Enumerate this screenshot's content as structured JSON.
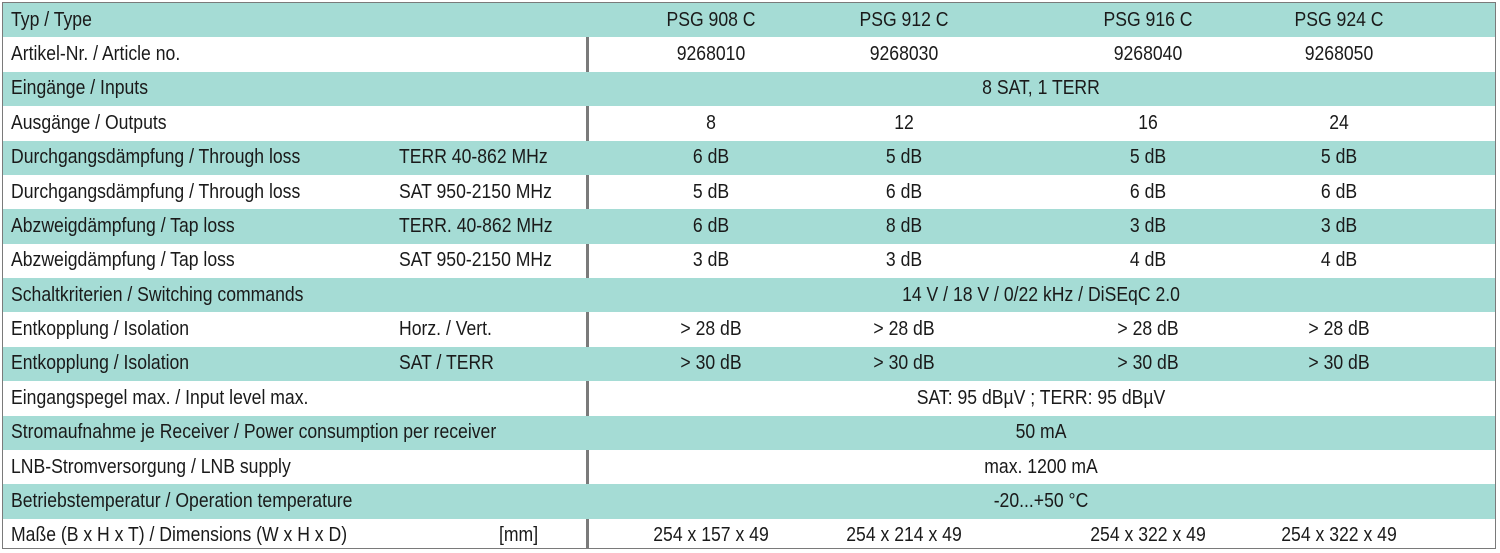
{
  "rows": [
    {
      "label": "Typ / Type",
      "sub": "",
      "values": [
        "PSG 908 C",
        "PSG 912 C",
        "PSG 916 C",
        "PSG 924 C"
      ],
      "all": ""
    },
    {
      "label": "Artikel-Nr. / Article no.",
      "sub": "",
      "values": [
        "9268010",
        "9268030",
        "9268040",
        "9268050"
      ],
      "all": ""
    },
    {
      "label": "Eingänge / Inputs",
      "sub": "",
      "values": [],
      "all": "8 SAT, 1 TERR"
    },
    {
      "label": "Ausgänge / Outputs",
      "sub": "",
      "values": [
        "8",
        "12",
        "16",
        "24"
      ],
      "all": ""
    },
    {
      "label": "Durchgangsdämpfung / Through loss",
      "sub": "TERR 40-862 MHz",
      "values": [
        "6 dB",
        "5 dB",
        "5 dB",
        "5 dB"
      ],
      "all": ""
    },
    {
      "label": "Durchgangsdämpfung / Through loss",
      "sub": "SAT 950-2150 MHz",
      "values": [
        "5 dB",
        "6 dB",
        "6 dB",
        "6 dB"
      ],
      "all": ""
    },
    {
      "label": "Abzweigdämpfung / Tap loss",
      "sub": "TERR. 40-862 MHz",
      "values": [
        "6 dB",
        "8 dB",
        "3 dB",
        "3 dB"
      ],
      "all": ""
    },
    {
      "label": "Abzweigdämpfung / Tap loss",
      "sub": "SAT 950-2150 MHz",
      "values": [
        "3 dB",
        "3 dB",
        "4 dB",
        "4 dB"
      ],
      "all": ""
    },
    {
      "label": "Schaltkriterien / Switching commands",
      "sub": "",
      "values": [],
      "all": "14 V / 18 V / 0/22 kHz / DiSEqC 2.0"
    },
    {
      "label": "Entkopplung / Isolation",
      "sub": "Horz. / Vert.",
      "values": [
        "> 28 dB",
        "> 28 dB",
        "> 28 dB",
        "> 28 dB"
      ],
      "all": ""
    },
    {
      "label": "Entkopplung / Isolation",
      "sub": "SAT / TERR",
      "values": [
        "> 30 dB",
        "> 30 dB",
        "> 30 dB",
        "> 30 dB"
      ],
      "all": ""
    },
    {
      "label": "Eingangspegel max. / Input level max.",
      "sub": "",
      "values": [],
      "all": "SAT: 95 dBµV ; TERR: 95 dBµV"
    },
    {
      "label": "Stromaufnahme je Receiver / Power consumption per receiver",
      "sub": "",
      "values": [],
      "all": "50 mA"
    },
    {
      "label": "LNB-Stromversorgung / LNB supply",
      "sub": "",
      "values": [],
      "all": "max. 1200 mA"
    },
    {
      "label": "Betriebstemperatur / Operation temperature",
      "sub": "",
      "values": [],
      "all": "-20...+50 °C"
    },
    {
      "label": "Maße (B x H x T) / Dimensions (W x H x D)",
      "sub": "",
      "unit": "[mm]",
      "values": [
        "254 x 157 x 49",
        "254 x 214 x 49",
        "254 x 322 x 49",
        "254 x 322 x 49"
      ],
      "all": ""
    }
  ]
}
